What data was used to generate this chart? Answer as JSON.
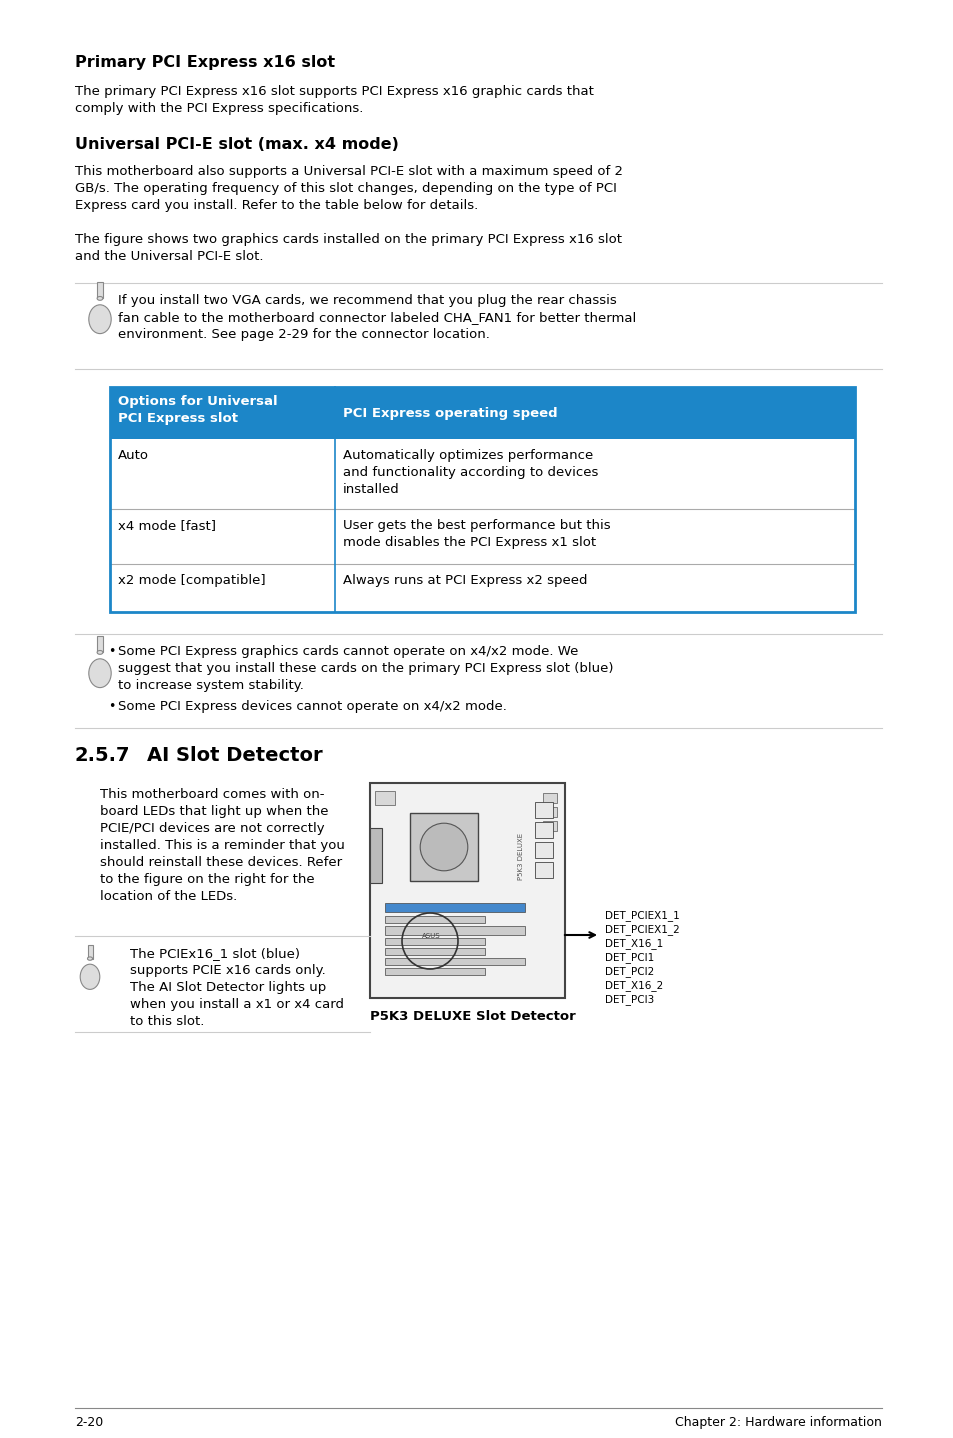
{
  "bg_color": "#ffffff",
  "title1": "Primary PCI Express x16 slot",
  "para1": "The primary PCI Express x16 slot supports PCI Express x16 graphic cards that\ncomply with the PCI Express specifications.",
  "title2": "Universal PCI-E slot (max. x4 mode)",
  "para2": "This motherboard also supports a Universal PCI-E slot with a maximum speed of 2\nGB/s. The operating frequency of this slot changes, depending on the type of PCI\nExpress card you install. Refer to the table below for details.",
  "para3": "The figure shows two graphics cards installed on the primary PCI Express x16 slot\nand the Universal PCI-E slot.",
  "note1": "If you install two VGA cards, we recommend that you plug the rear chassis\nfan cable to the motherboard connector labeled CHA_FAN1 for better thermal\nenvironment. See page 2-29 for the connector location.",
  "table_header_bg": "#1c86c8",
  "table_col1_header": "Options for Universal\nPCI Express slot",
  "table_col2_header": "PCI Express operating speed",
  "table_rows": [
    [
      "Auto",
      "Automatically optimizes performance\nand functionality according to devices\ninstalled"
    ],
    [
      "x4 mode [fast]",
      "User gets the best performance but this\nmode disables the PCI Express x1 slot"
    ],
    [
      "x2 mode [compatible]",
      "Always runs at PCI Express x2 speed"
    ]
  ],
  "note2_bullets": [
    "Some PCI Express graphics cards cannot operate on x4/x2 mode. We\nsuggest that you install these cards on the primary PCI Express slot (blue)\nto increase system stability.",
    "Some PCI Express devices cannot operate on x4/x2 mode."
  ],
  "section_num": "2.5.7",
  "section_title": "AI Slot Detector",
  "section_para": "This motherboard comes with on-\nboard LEDs that light up when the\nPCIE/PCI devices are not correctly\ninstalled. This is a reminder that you\nshould reinstall these devices. Refer\nto the figure on the right for the\nlocation of the LEDs.",
  "note3": "The PCIEx16_1 slot (blue)\nsupports PCIE x16 cards only.\nThe AI Slot Detector lights up\nwhen you install a x1 or x4 card\nto this slot.",
  "figure_caption": "P5K3 DELUXE Slot Detector",
  "figure_labels": [
    "DET_PCIEX1_1",
    "DET_PCIEX1_2",
    "DET_X16_1",
    "DET_PCI1",
    "DET_PCI2",
    "DET_X16_2",
    "DET_PCI3"
  ],
  "footer_left": "2-20",
  "footer_right": "Chapter 2: Hardware information",
  "font_size_body": 9.5,
  "font_size_heading": 11.5,
  "font_size_section": 14
}
